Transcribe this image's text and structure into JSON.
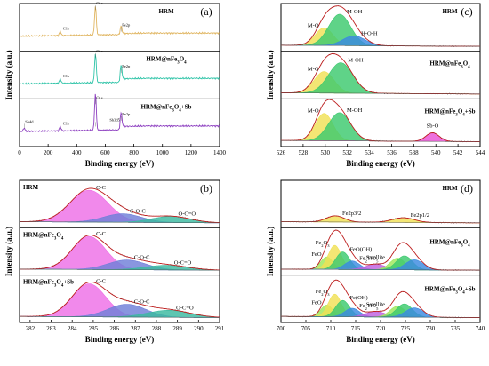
{
  "chart_data": [
    {
      "panel": "(a)",
      "type": "line",
      "xlabel": "Binding energy (eV)",
      "ylabel": "Intensity (a.u.)",
      "xlim": [
        0,
        1400
      ],
      "xticks": [
        "0",
        "200",
        "400",
        "600",
        "800",
        "1000",
        "1200",
        "1400"
      ],
      "samples": [
        {
          "name": "HRM",
          "color": "#e0b560",
          "peaks": [
            {
              "label": "C1s",
              "x": 285,
              "h": 0.12
            },
            {
              "label": "O1s",
              "x": 531,
              "h": 0.85
            },
            {
              "label": "Fe2p",
              "x": 711,
              "h": 0.22
            }
          ]
        },
        {
          "name": "HRM@nFe₃O₄",
          "color": "#2fc4a8",
          "peaks": [
            {
              "label": "C1s",
              "x": 285,
              "h": 0.12
            },
            {
              "label": "O1s",
              "x": 531,
              "h": 0.85
            },
            {
              "label": "Fe2p",
              "x": 711,
              "h": 0.4
            }
          ]
        },
        {
          "name": "HRM@nFe₃O₄+Sb",
          "color": "#8d3fc0",
          "peaks": [
            {
              "label": "Sb4d",
              "x": 33,
              "h": 0.1
            },
            {
              "label": "C1s",
              "x": 285,
              "h": 0.12
            },
            {
              "label": "O1s",
              "x": 531,
              "h": 0.88
            },
            {
              "label": "Sb3d5",
              "x": 531,
              "h": 0.2
            },
            {
              "label": "Fe2p",
              "x": 711,
              "h": 0.4
            }
          ]
        }
      ]
    },
    {
      "panel": "(b)",
      "type": "area",
      "xlabel": "Binding energy (eV)",
      "ylabel": "Intensity (a.u.)",
      "xlim": [
        281.5,
        291
      ],
      "xticks": [
        "282",
        "283",
        "284",
        "285",
        "286",
        "287",
        "288",
        "289",
        "290",
        "291"
      ],
      "samples": [
        {
          "name": "HRM",
          "components": [
            {
              "label": "C-C",
              "center": 284.8,
              "width": 0.9,
              "height": 0.82,
              "color": "#ee6fe6"
            },
            {
              "label": "C-O-C",
              "center": 286.4,
              "width": 0.9,
              "height": 0.22,
              "color": "#6f7fd8"
            },
            {
              "label": "O-C=O",
              "center": 288.7,
              "width": 0.9,
              "height": 0.16,
              "color": "#3ab9a0"
            }
          ]
        },
        {
          "name": "HRM@nFe₃O₄",
          "components": [
            {
              "label": "C-C",
              "center": 284.8,
              "width": 0.8,
              "height": 0.85,
              "color": "#ee6fe6"
            },
            {
              "label": "C-O-C",
              "center": 286.6,
              "width": 0.9,
              "height": 0.25,
              "color": "#6f7fd8"
            },
            {
              "label": "O-C=O",
              "center": 288.5,
              "width": 1.0,
              "height": 0.12,
              "color": "#3ab9a0"
            }
          ]
        },
        {
          "name": "HRM@nFe₃O₄+Sb",
          "components": [
            {
              "label": "C-C",
              "center": 284.8,
              "width": 0.8,
              "height": 0.85,
              "color": "#ee6fe6"
            },
            {
              "label": "C-O-C",
              "center": 286.6,
              "width": 0.9,
              "height": 0.33,
              "color": "#6f7fd8"
            },
            {
              "label": "O-C=O",
              "center": 288.6,
              "width": 1.0,
              "height": 0.18,
              "color": "#3ab9a0"
            }
          ]
        }
      ]
    },
    {
      "panel": "(c)",
      "type": "area",
      "xlabel": "Binding energy (eV)",
      "ylabel": "Intensity (a.u.)",
      "xlim": [
        526,
        544
      ],
      "xticks": [
        "526",
        "528",
        "530",
        "532",
        "534",
        "536",
        "538",
        "540",
        "542",
        "544"
      ],
      "samples": [
        {
          "name": "HRM",
          "components": [
            {
              "label": "M-O",
              "center": 529.9,
              "width": 0.8,
              "height": 0.45,
              "color": "#f0e055"
            },
            {
              "label": "M-OH",
              "center": 531.3,
              "width": 1.0,
              "height": 0.8,
              "color": "#3cc96e"
            },
            {
              "label": "H-O-H",
              "center": 532.6,
              "width": 1.0,
              "height": 0.25,
              "color": "#3a8ae0"
            }
          ]
        },
        {
          "name": "HRM@nFe₃O₄",
          "components": [
            {
              "label": "M-O",
              "center": 529.9,
              "width": 0.9,
              "height": 0.55,
              "color": "#f0e055"
            },
            {
              "label": "M-OH",
              "center": 531.4,
              "width": 1.1,
              "height": 0.78,
              "color": "#3cc96e"
            }
          ]
        },
        {
          "name": "HRM@nFe₃O₄+Sb",
          "components": [
            {
              "label": "M-O",
              "center": 529.9,
              "width": 0.8,
              "height": 0.7,
              "color": "#f0e055"
            },
            {
              "label": "M-OH",
              "center": 531.3,
              "width": 1.0,
              "height": 0.72,
              "color": "#3cc96e"
            },
            {
              "label": "Sb-O",
              "center": 539.7,
              "width": 0.6,
              "height": 0.22,
              "color": "#ea50d6"
            }
          ]
        }
      ]
    },
    {
      "panel": "(d)",
      "type": "area",
      "xlabel": "Binding energy (eV)",
      "ylabel": "Intensity (a.u.)",
      "xlim": [
        700,
        740
      ],
      "xticks": [
        "700",
        "705",
        "710",
        "715",
        "720",
        "725",
        "730",
        "735",
        "740"
      ],
      "samples": [
        {
          "name": "HRM",
          "components": [
            {
              "label": "Fe2p3/2",
              "center": 710.9,
              "width": 1.8,
              "height": 0.16,
              "color": "#f0e055"
            },
            {
              "label": "Fe2p1/2",
              "center": 724.6,
              "width": 2.2,
              "height": 0.12,
              "color": "#f0e055"
            }
          ]
        },
        {
          "name": "HRM@nFe₃O₄",
          "components": [
            {
              "label": "FeO",
              "center": 709.2,
              "width": 1.2,
              "height": 0.32,
              "color": "#9fe85a"
            },
            {
              "label": "Fe₂O₃",
              "center": 710.8,
              "width": 1.3,
              "height": 0.62,
              "color": "#f0e055"
            },
            {
              "label": "FeO(OH)",
              "center": 712.4,
              "width": 1.4,
              "height": 0.45,
              "color": "#3cc96e"
            },
            {
              "label": "Fe₂TiO₅",
              "center": 714.3,
              "width": 1.5,
              "height": 0.22,
              "color": "#3a8ae0"
            },
            {
              "label": "Satellite",
              "center": 719.0,
              "width": 2.0,
              "height": 0.14,
              "color": "#c060e0"
            },
            {
              "label": "",
              "center": 723.4,
              "width": 1.5,
              "height": 0.3,
              "color": "#9fe85a"
            },
            {
              "label": "",
              "center": 724.8,
              "width": 1.6,
              "height": 0.36,
              "color": "#3cc96e"
            },
            {
              "label": "",
              "center": 726.8,
              "width": 1.8,
              "height": 0.26,
              "color": "#3a8ae0"
            }
          ]
        },
        {
          "name": "HRM@nFe₃O₄+Sb",
          "components": [
            {
              "label": "FeO",
              "center": 709.2,
              "width": 1.2,
              "height": 0.3,
              "color": "#9fe85a"
            },
            {
              "label": "Fe₂O₃",
              "center": 710.8,
              "width": 1.3,
              "height": 0.58,
              "color": "#f0e055"
            },
            {
              "label": "Fe(OH)",
              "center": 712.4,
              "width": 1.4,
              "height": 0.42,
              "color": "#3cc96e"
            },
            {
              "label": "Fe₂TiO₅",
              "center": 714.3,
              "width": 1.5,
              "height": 0.22,
              "color": "#3a8ae0"
            },
            {
              "label": "Satellite",
              "center": 719.0,
              "width": 2.0,
              "height": 0.14,
              "color": "#c060e0"
            },
            {
              "label": "",
              "center": 723.4,
              "width": 1.5,
              "height": 0.28,
              "color": "#9fe85a"
            },
            {
              "label": "",
              "center": 724.8,
              "width": 1.6,
              "height": 0.34,
              "color": "#3cc96e"
            },
            {
              "label": "",
              "center": 726.8,
              "width": 1.8,
              "height": 0.24,
              "color": "#3a8ae0"
            }
          ]
        }
      ]
    }
  ],
  "labels": {
    "a": {
      "letter": "(a)",
      "xlabel": "Binding energy (eV)",
      "ylabel": "Intensity (a.u.)",
      "s1": "HRM",
      "s2": "HRM@nFe",
      "s2sub": "3",
      "s2b": "O",
      "s2sub2": "4",
      "s3": "HRM@nFe",
      "s3sub": "3",
      "s3b": "O",
      "s3sub2": "4",
      "s3c": "+Sb"
    },
    "b": {
      "letter": "(b)",
      "xlabel": "Binding energy (eV)",
      "ylabel": "Intensity (a.u.)"
    },
    "c": {
      "letter": "(c)",
      "xlabel": "Binding energy (eV)",
      "ylabel": "Intensity (a.u.)"
    },
    "d": {
      "letter": "(d)",
      "xlabel": "Binding energy (eV)",
      "ylabel": "Intensity (a.u.)"
    }
  }
}
